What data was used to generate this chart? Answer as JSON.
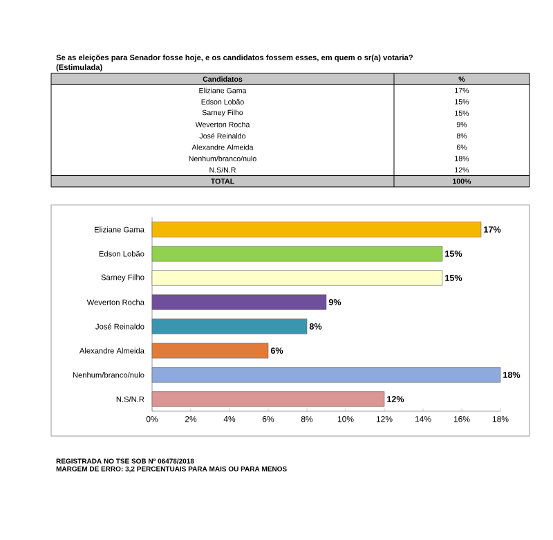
{
  "chart_data": {
    "type": "bar",
    "orientation": "horizontal",
    "title": "Se as eleições para Senador fosse hoje, e os candidatos fossem esses, em quem o sr(a) votaria?",
    "subtitle": "(Estimulada)",
    "categories": [
      "Eliziane Gama",
      "Edson Lobão",
      "Sarney Filho",
      "Weverton Rocha",
      "José Reinaldo",
      "Alexandre Almeida",
      "Nenhum/branco/nulo",
      "N.S/N.R"
    ],
    "values": [
      17,
      15,
      15,
      9,
      8,
      6,
      18,
      12
    ],
    "colors": [
      "#f5b800",
      "#92d050",
      "#ffffcc",
      "#6f4e9c",
      "#3a96b0",
      "#e07b39",
      "#8ea9db",
      "#d99694"
    ],
    "value_labels": [
      "17%",
      "15%",
      "15%",
      "9%",
      "8%",
      "6%",
      "18%",
      "12%"
    ],
    "xlim": [
      0,
      18
    ],
    "xticks": [
      {
        "value": 0,
        "label": "0%"
      },
      {
        "value": 2,
        "label": "2%"
      },
      {
        "value": 4,
        "label": "4%"
      },
      {
        "value": 6,
        "label": "6%"
      },
      {
        "value": 8,
        "label": "8%"
      },
      {
        "value": 10,
        "label": "10%"
      },
      {
        "value": 12,
        "label": "12%"
      },
      {
        "value": 14,
        "label": "14%"
      },
      {
        "value": 16,
        "label": "16%"
      },
      {
        "value": 18,
        "label": "18%"
      }
    ],
    "grid": false,
    "annotations": [
      "Candidatos",
      "%",
      "TOTAL",
      "100%",
      "REGISTRADA NO TSE SOB Nº 06478/2018",
      "MARGEM DE ERRO: 3,2 PERCENTUAIS PARA MAIS OU PARA MENOS"
    ]
  }
}
